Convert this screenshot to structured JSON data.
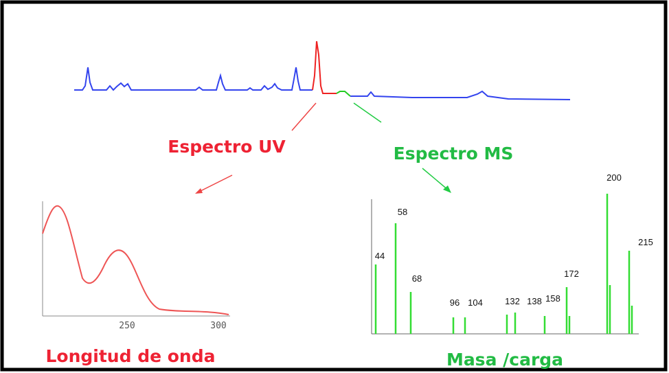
{
  "labels": {
    "uv_title": "Espectro UV",
    "ms_title": "Espectro MS",
    "uv_axis_label": "Longitud de onda",
    "ms_axis_label": "Masa /carga"
  },
  "uv_ticks": [
    "250",
    "300"
  ],
  "ms_peaks": [
    "44",
    "58",
    "68",
    "96",
    "104",
    "132",
    "138",
    "158",
    "172",
    "200",
    "215"
  ]
}
